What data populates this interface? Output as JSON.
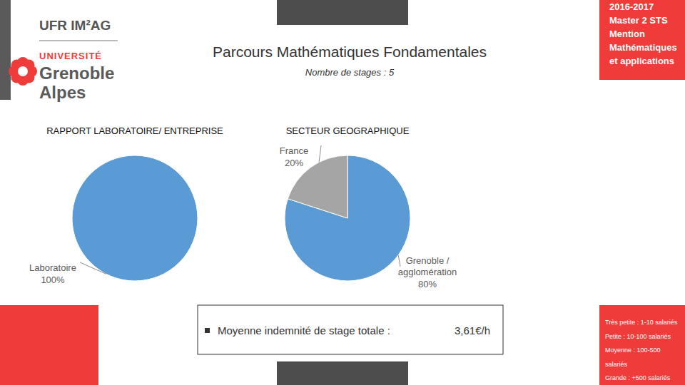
{
  "page": {
    "logo": {
      "unit": "UFR IM²AG",
      "university": "UNIVERSITÉ",
      "city": [
        "Grenoble",
        "Alpes"
      ]
    },
    "header": {
      "title": "Parcours Mathématiques Fondamentales",
      "subtitle": "Nombre de stages : 5"
    },
    "badge": [
      "2016-2017",
      "Master 2 STS",
      "Mention",
      "Mathématiques",
      "et applications"
    ],
    "stipend": {
      "label": "Moyenne indemnité de stage totale :",
      "value": "3,61€/h"
    },
    "size_legend": [
      "Très petite : 1-10 salariés",
      "Petite : 10-100 salariés",
      "Moyenne : 100-500",
      "salariés",
      "Grande : +500 salariés"
    ]
  },
  "chart_data": [
    {
      "type": "pie",
      "title": "RAPPORT LABORATOIRE/ ENTREPRISE",
      "categories": [
        "Laboratoire"
      ],
      "values": [
        100
      ],
      "value_labels": [
        "100%"
      ],
      "colors": [
        "#5b9bd5"
      ],
      "data_labels": true
    },
    {
      "type": "pie",
      "title": "SECTEUR GEOGRAPHIQUE",
      "categories": [
        "Grenoble / agglomération",
        "France"
      ],
      "values": [
        80,
        20
      ],
      "value_labels": [
        "80%",
        "20%"
      ],
      "colors": [
        "#5b9bd5",
        "#a5a5a5"
      ],
      "data_labels": true
    }
  ]
}
